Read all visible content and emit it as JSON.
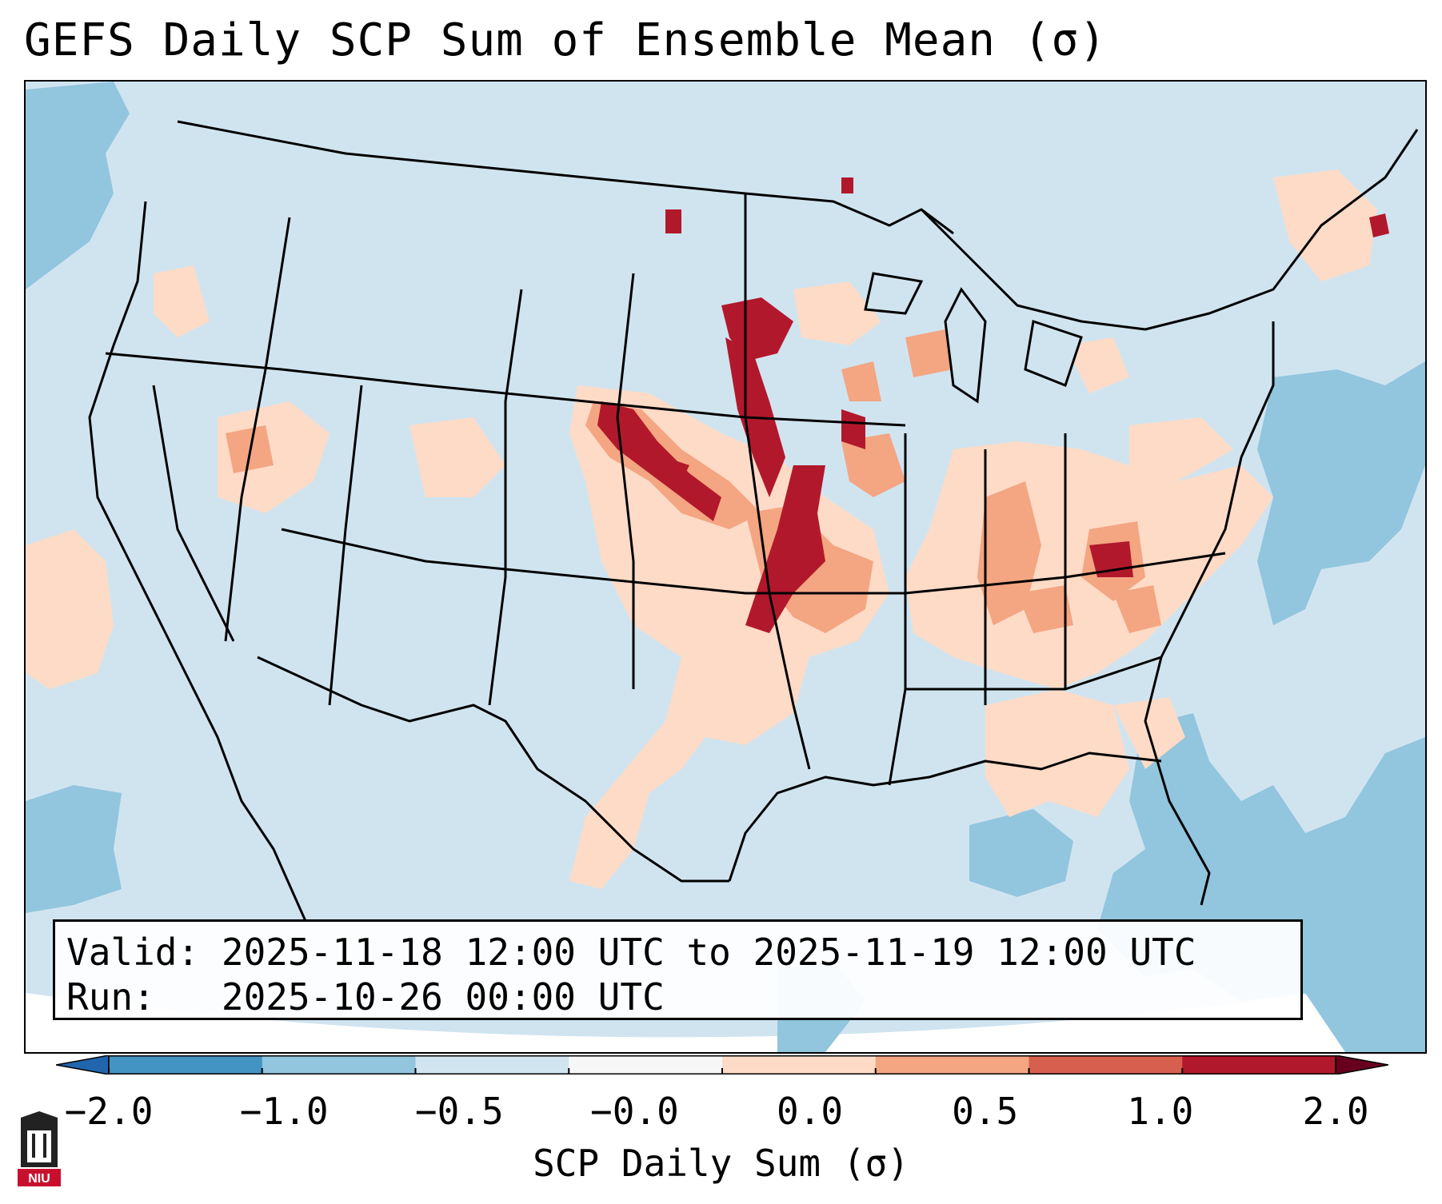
{
  "title": "GEFS Daily SCP Sum of Ensemble Mean (σ)",
  "valid_label": "Valid:",
  "valid_value": "2025-11-18 12:00 UTC to 2025-11-19 12:00 UTC",
  "run_label": "Run:",
  "run_value": "2025-10-26 00:00 UTC",
  "colorbar": {
    "label": "SCP Daily Sum (σ)",
    "ticks": [
      "−2.0",
      "−1.0",
      "−0.5",
      "−0.0",
      "0.0",
      "0.5",
      "1.0",
      "2.0"
    ],
    "colors": [
      "#4393c3",
      "#92c5de",
      "#d1e5f0",
      "#f7f7f7",
      "#fddbc7",
      "#f4a582",
      "#d6604d",
      "#b2182b"
    ],
    "extend": "both"
  },
  "map": {
    "region": "CONUS",
    "projection": "lambert-conformal",
    "background_color": "#d1e5f0",
    "outside_domain_color": "#ffffff",
    "border_color": "#000000"
  },
  "logo": {
    "icon": "niu-university-logo",
    "text": "NIU",
    "color": "#c8102e"
  }
}
